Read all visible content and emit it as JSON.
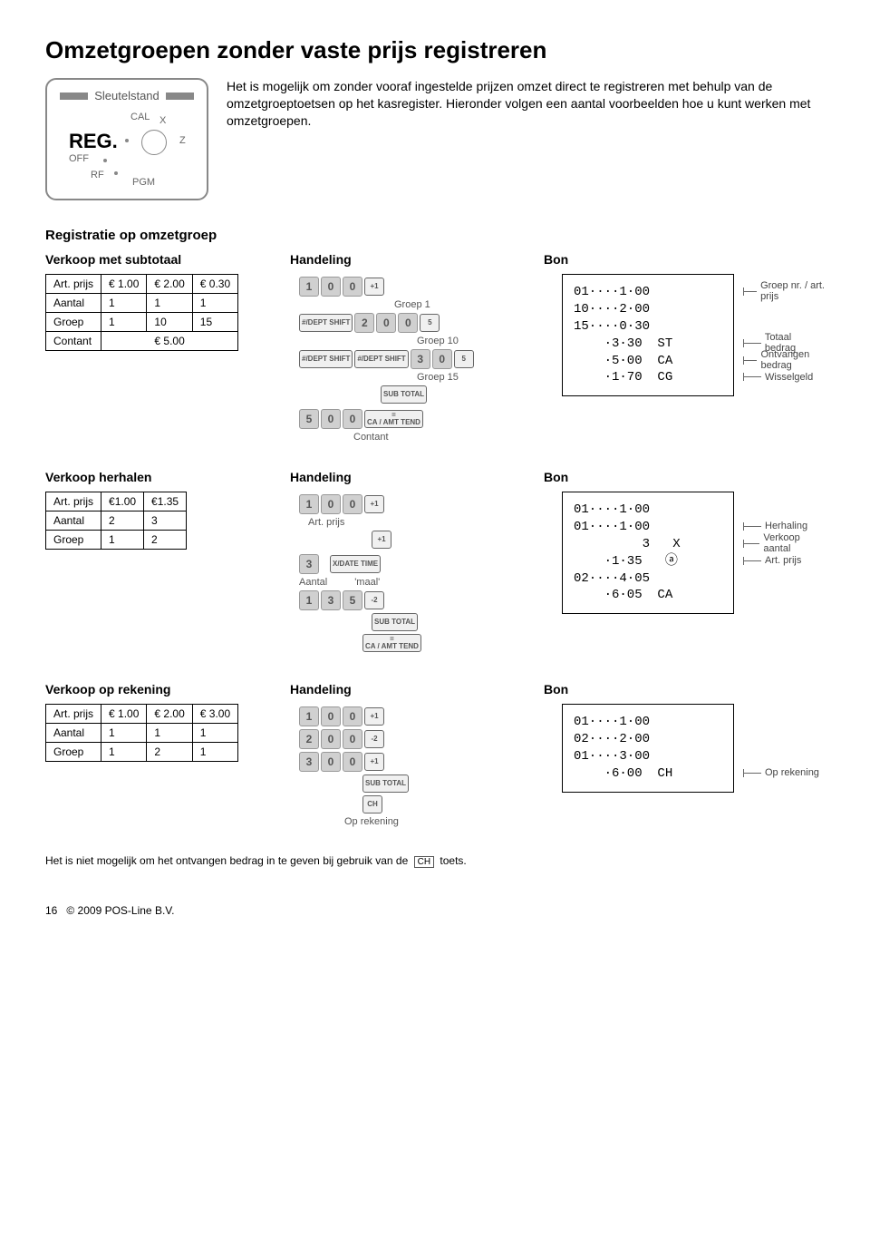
{
  "page_title": "Omzetgroepen zonder vaste prijs registreren",
  "dial": {
    "label": "Sleutelstand",
    "big": "REG.",
    "cal": "CAL",
    "x": "X",
    "z": "Z",
    "off": "OFF",
    "rf": "RF",
    "pgm": "PGM"
  },
  "intro_text": "Het is mogelijk om zonder vooraf ingestelde prijzen omzet direct te registreren met behulp van de omzetgroeptoetsen op het kasregister. Hieronder volgen een aantal voorbeelden hoe u kunt werken met omzetgroepen.",
  "section_title": "Registratie op omzetgroep",
  "col_labels": {
    "handeling": "Handeling",
    "bon": "Bon"
  },
  "example1": {
    "left_title": "Verkoop met subtotaal",
    "table": {
      "rowlabels": [
        "Art. prijs",
        "Aantal",
        "Groep",
        "Contant"
      ],
      "cols": [
        "€ 1.00",
        "€ 2.00",
        "€ 0.30"
      ],
      "aantal": [
        "1",
        "1",
        "1"
      ],
      "groep": [
        "1",
        "10",
        "15"
      ],
      "contant": "€ 5.00"
    },
    "handling": {
      "g1": "Groep 1",
      "g10": "Groep 10",
      "g15": "Groep 15",
      "sub": "SUB TOTAL",
      "catend": "CA / AMT TEND",
      "contant": "Contant",
      "dept": "#/DEPT SHIFT"
    },
    "bon_lines": [
      "01····1·00",
      "10····2·00",
      "15····0·30",
      "    ·3·30  ST",
      "    ·5·00  CA",
      "    ·1·70  CG"
    ],
    "bon_notes": [
      "Groep nr. / art. prijs",
      "",
      "",
      "Totaal bedrag",
      "Ontvangen bedrag",
      "Wisselgeld"
    ]
  },
  "example2": {
    "left_title": "Verkoop  herhalen",
    "table": {
      "rowlabels": [
        "Art. prijs",
        "Aantal",
        "Groep"
      ],
      "cols": [
        "€1.00",
        "€1.35"
      ],
      "aantal": [
        "2",
        "3"
      ],
      "groep": [
        "1",
        "2"
      ]
    },
    "handling": {
      "artprijs": "Art. prijs",
      "aantal": "Aantal",
      "maal": "'maal'",
      "xdate": "X/DATE TIME",
      "sub": "SUB TOTAL",
      "catend": "CA / AMT TEND"
    },
    "bon_lines": [
      "01····1·00",
      "01····1·00",
      "         3   X",
      "    ·1·35   ⓐ",
      "02····4·05",
      "    ·6·05  CA"
    ],
    "bon_notes": [
      "",
      "Herhaling",
      "Verkoop aantal",
      "Art. prijs",
      "",
      ""
    ]
  },
  "example3": {
    "left_title": "Verkoop op rekening",
    "table": {
      "rowlabels": [
        "Art. prijs",
        "Aantal",
        "Groep"
      ],
      "cols": [
        "€ 1.00",
        "€ 2.00",
        "€ 3.00"
      ],
      "aantal": [
        "1",
        "1",
        "1"
      ],
      "groep": [
        "1",
        "2",
        "1"
      ]
    },
    "handling": {
      "sub": "SUB TOTAL",
      "ch": "CH",
      "oprek": "Op rekening"
    },
    "bon_lines": [
      "01····1·00",
      "02····2·00",
      "01····3·00",
      "    ·6·00  CH"
    ],
    "bon_notes": [
      "",
      "",
      "",
      "Op rekening"
    ]
  },
  "foot_note_pre": "Het is niet mogelijk om het ontvangen bedrag in te geven bij gebruik van de",
  "foot_note_key": "CH",
  "foot_note_post": "toets.",
  "footer": {
    "page": "16",
    "copyright": "© 2009 POS-Line B.V."
  }
}
